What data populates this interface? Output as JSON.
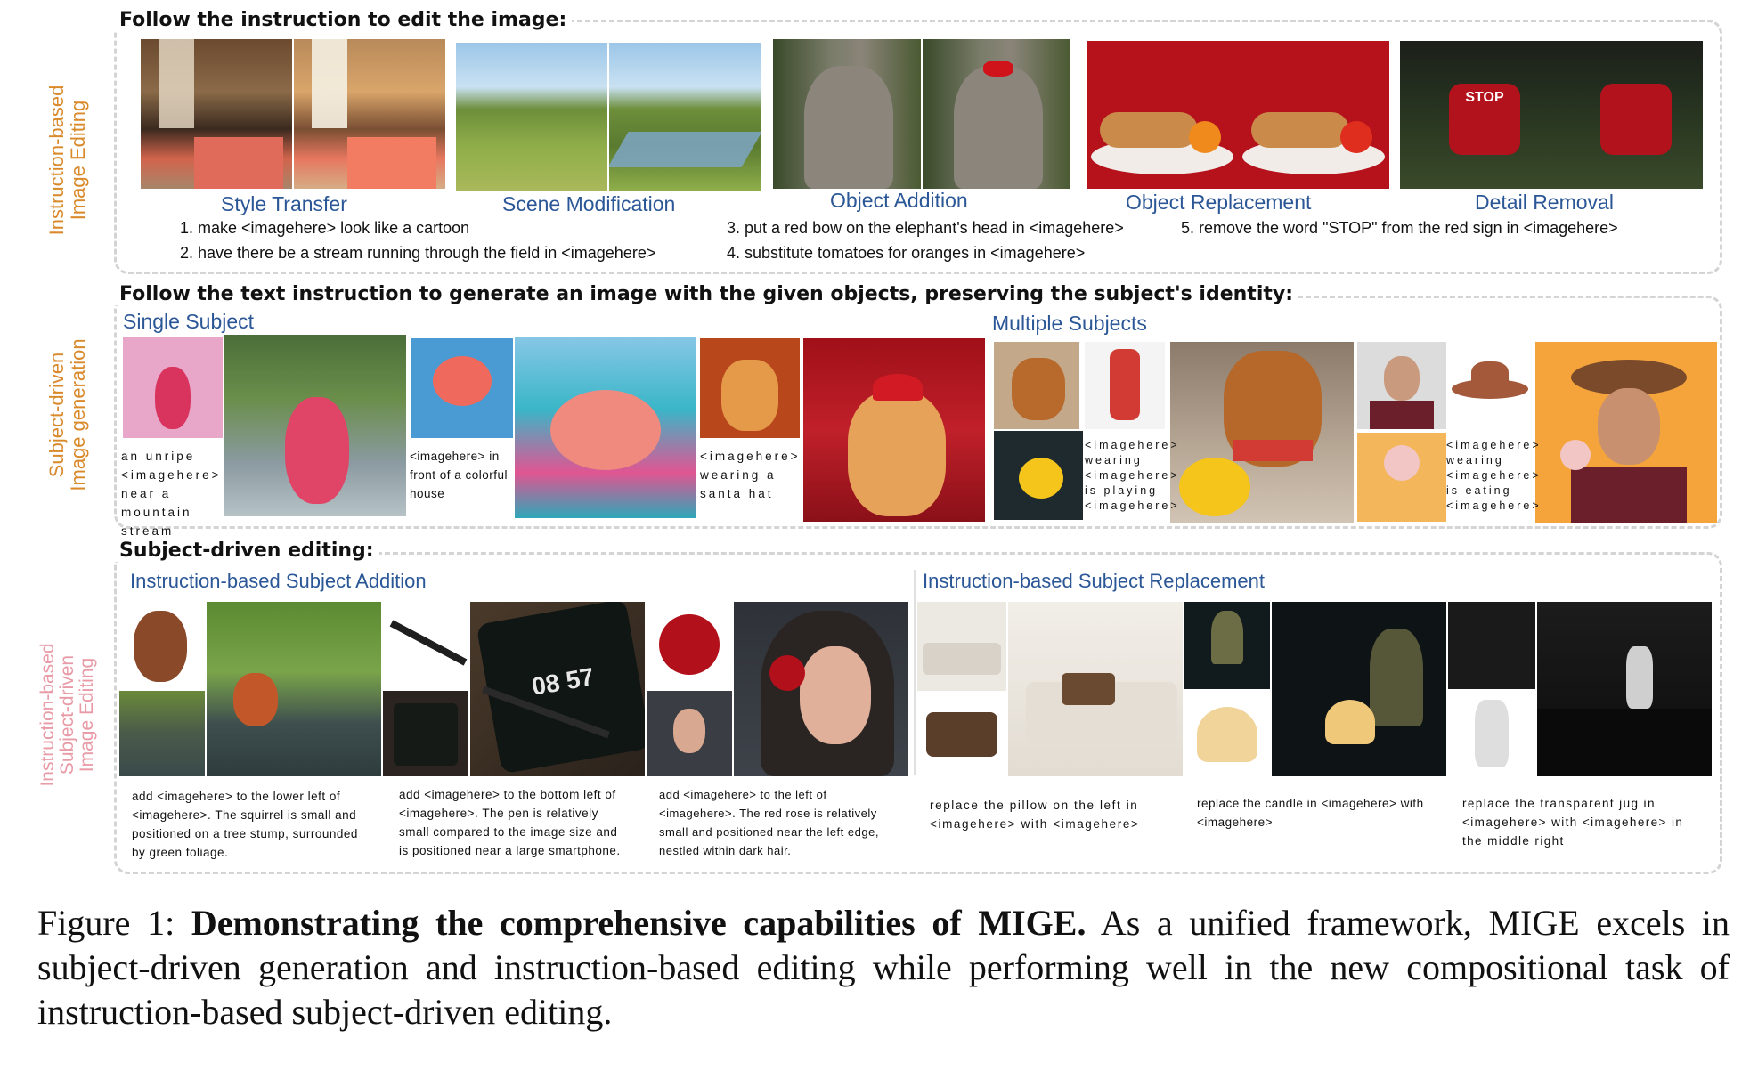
{
  "section1": {
    "heading": "Follow the instruction to edit the image:",
    "side_label_line1": "Instruction-based",
    "side_label_line2": "Image Editing",
    "side_color": "#d9892a",
    "categories": [
      "Style Transfer",
      "Scene Modification",
      "Object Addition",
      "Object Replacement",
      "Detail Removal"
    ],
    "instructions": [
      "1. make <imagehere> look like a cartoon",
      "2. have there be a stream running through the field in <imagehere>",
      "3. put a red bow on the elephant's head in <imagehere>",
      "4. substitute tomatoes for oranges in <imagehere>",
      "5. remove the word \"STOP\" from the red sign in <imagehere>"
    ],
    "stop_text": "STOP"
  },
  "section2": {
    "heading": "Follow the text instruction to generate an image with the given objects, preserving the subject's identity:",
    "side_label_line1": "Subject-driven",
    "side_label_line2": "Image generation",
    "side_color": "#d9892a",
    "single_label": "Single Subject",
    "multiple_label": "Multiple Subjects",
    "captions": [
      "an unripe <imagehere> near a mountain stream",
      "<imagehere> in front of a colorful house",
      "<imagehere> wearing a santa hat",
      "<imagehere> wearing <imagehere> is playing <imagehere>",
      "<imagehere> wearing <imagehere> is eating <imagehere>"
    ]
  },
  "section3": {
    "heading": "Subject-driven editing:",
    "side_label_line1": "Instruction-based",
    "side_label_line2": "Subject-driven",
    "side_label_line3": "Image Editing",
    "side_color": "#e89aa6",
    "addition_label": "Instruction-based Subject Addition",
    "replacement_label": "Instruction-based Subject Replacement",
    "captions": [
      "add <imagehere> to the lower left of <imagehere>. The squirrel is small and positioned on a tree stump, surrounded by green foliage.",
      "add <imagehere> to the bottom left of <imagehere>. The pen is relatively small compared to the image size and is positioned near a large smartphone.",
      "add <imagehere> to the left of <imagehere>. The red rose is relatively small and positioned near the left edge, nestled within dark hair.",
      "replace the pillow on the left in <imagehere> with <imagehere>",
      "replace the candle in <imagehere> with <imagehere>",
      "replace the transparent jug in <imagehere> with <imagehere> in the middle right"
    ],
    "phone_text": "08 57"
  },
  "figure_caption": {
    "prefix": "Figure 1: ",
    "bold": "Demonstrating the comprehensive capabilities of MIGE.",
    "rest": " As a unified framework, MIGE excels in subject-driven generation and instruction-based editing while performing well in the new compositional task of instruction-based subject-driven editing."
  }
}
